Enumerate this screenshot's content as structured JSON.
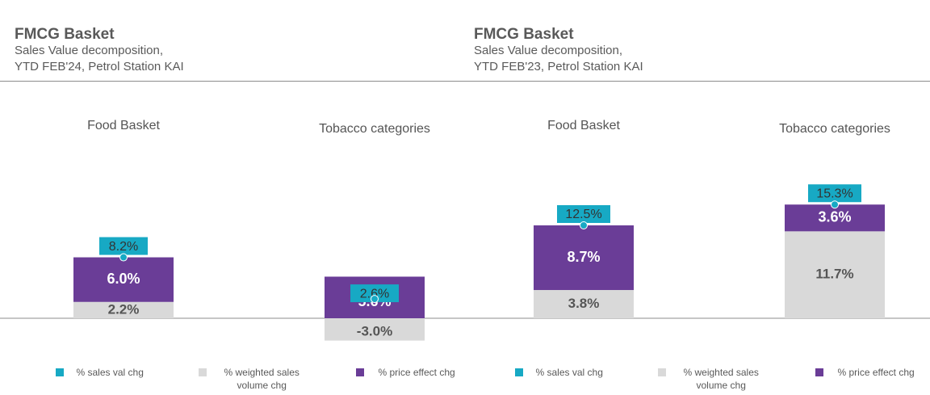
{
  "panels": [
    {
      "title": "FMCG Basket",
      "subtitle_line1": "Sales Value decomposition,",
      "subtitle_line2": "YTD FEB'24, Petrol Station KAI"
    },
    {
      "title": "FMCG Basket",
      "subtitle_line1": "Sales Value decomposition,",
      "subtitle_line2": "YTD FEB'23, Petrol Station KAI"
    }
  ],
  "legend": [
    {
      "label": "% sales val chg",
      "color": "#17a9c4"
    },
    {
      "label": "% weighted sales volume chg",
      "line1": "% weighted sales",
      "line2": "volume chg",
      "color": "#d9d9d9"
    },
    {
      "label": "% price effect chg",
      "color": "#6a3d97"
    },
    {
      "label": "% sales val chg",
      "color": "#17a9c4"
    },
    {
      "label": "% weighted sales volume chg",
      "line1": "% weighted sales",
      "line2": "volume chg",
      "color": "#d9d9d9"
    },
    {
      "label": "% price effect chg",
      "color": "#6a3d97"
    }
  ],
  "chart_data": [
    {
      "type": "bar",
      "stacked": true,
      "title": "FMCG Basket",
      "subtitle": "Sales Value decomposition, YTD FEB'24, Petrol Station KAI",
      "categories": [
        "Food Basket",
        "Tobacco categories"
      ],
      "series": [
        {
          "name": "% weighted sales volume chg",
          "values": [
            2.2,
            -3.0
          ],
          "labels": [
            "2.2%",
            "-3.0%"
          ],
          "color": "#d9d9d9"
        },
        {
          "name": "% price effect chg",
          "values": [
            6.0,
            5.6
          ],
          "labels": [
            "6.0%",
            "5.6%"
          ],
          "color": "#6a3d97"
        },
        {
          "name": "% sales val chg",
          "values": [
            8.2,
            2.6
          ],
          "labels": [
            "8.2%",
            "2.6%"
          ],
          "color": "#17a9c4",
          "marker": "dot"
        }
      ]
    },
    {
      "type": "bar",
      "stacked": true,
      "title": "FMCG Basket",
      "subtitle": "Sales Value decomposition, YTD FEB'23, Petrol Station KAI",
      "categories": [
        "Food Basket",
        "Tobacco categories"
      ],
      "series": [
        {
          "name": "% weighted sales volume chg",
          "values": [
            3.8,
            11.7
          ],
          "labels": [
            "3.8%",
            "11.7%"
          ],
          "color": "#d9d9d9"
        },
        {
          "name": "% price effect chg",
          "values": [
            8.7,
            3.6
          ],
          "labels": [
            "8.7%",
            "3.6%"
          ],
          "color": "#6a3d97"
        },
        {
          "name": "% sales val chg",
          "values": [
            12.5,
            15.3
          ],
          "labels": [
            "12.5%",
            "15.3%"
          ],
          "color": "#17a9c4",
          "marker": "dot"
        }
      ]
    }
  ]
}
